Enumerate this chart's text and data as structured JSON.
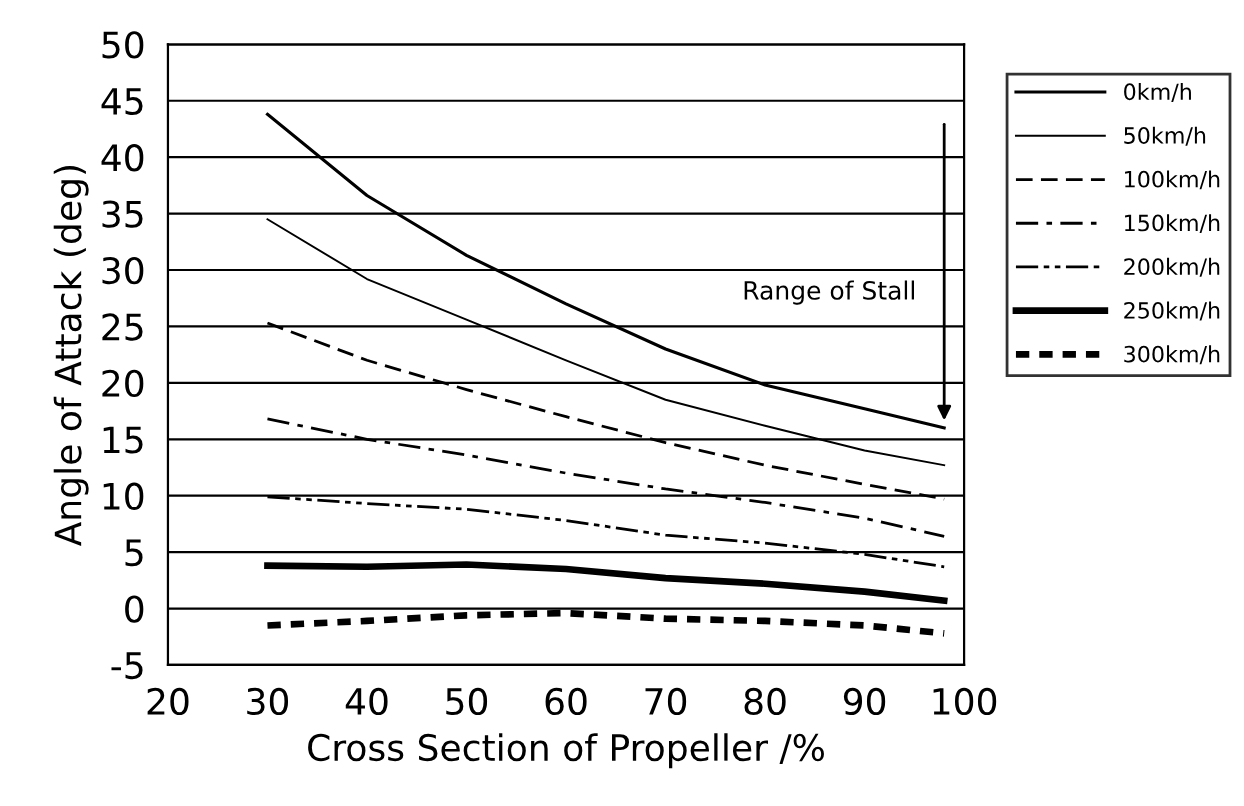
{
  "chart_data": {
    "type": "line",
    "xlabel": "Cross Section of Propeller /%",
    "ylabel": "Angle of Attack (deg)",
    "x": [
      30,
      40,
      50,
      60,
      70,
      80,
      90,
      98
    ],
    "series": [
      {
        "name": "0km/h",
        "color": "#000000",
        "line_style": "solid",
        "values": [
          43.8,
          36.6,
          31.3,
          27,
          23,
          19.8,
          17.7,
          16
        ]
      },
      {
        "name": "50km/h",
        "color": "#000000",
        "line_style": "solid",
        "values": [
          34.5,
          29.2,
          25.6,
          22,
          18.5,
          16.2,
          14,
          12.7
        ]
      },
      {
        "name": "100km/h",
        "color": "#000000",
        "line_style": "dashed",
        "values": [
          25.3,
          22,
          19.4,
          17,
          14.7,
          12.7,
          11,
          9.7
        ]
      },
      {
        "name": "150km/h",
        "color": "#000000",
        "line_style": "dashdot",
        "values": [
          16.8,
          15,
          13.6,
          12,
          10.6,
          9.4,
          8,
          6.4
        ]
      },
      {
        "name": "200km/h",
        "color": "#000000",
        "line_style": "dashdotdot",
        "values": [
          9.9,
          9.3,
          8.8,
          7.8,
          6.5,
          5.8,
          4.8,
          3.7
        ]
      },
      {
        "name": "250km/h",
        "color": "#000000",
        "line_style": "solid",
        "values": [
          3.8,
          3.7,
          3.9,
          3.5,
          2.7,
          2.2,
          1.5,
          0.7
        ]
      },
      {
        "name": "300km/h",
        "color": "#000000",
        "line_style": "dashed",
        "values": [
          -1.5,
          -1.1,
          -0.6,
          -0.4,
          -0.9,
          -1.1,
          -1.5,
          -2.2
        ]
      }
    ],
    "xlim": [
      20,
      100
    ],
    "xticks": [
      20,
      30,
      40,
      50,
      60,
      70,
      80,
      90,
      100
    ],
    "ylim": [
      -5,
      50
    ],
    "yticks": [
      -5,
      0,
      5,
      10,
      15,
      20,
      25,
      30,
      35,
      40,
      45,
      50
    ],
    "grid": "y",
    "legend": "top right",
    "annotations": [
      "Range of Stall"
    ]
  }
}
